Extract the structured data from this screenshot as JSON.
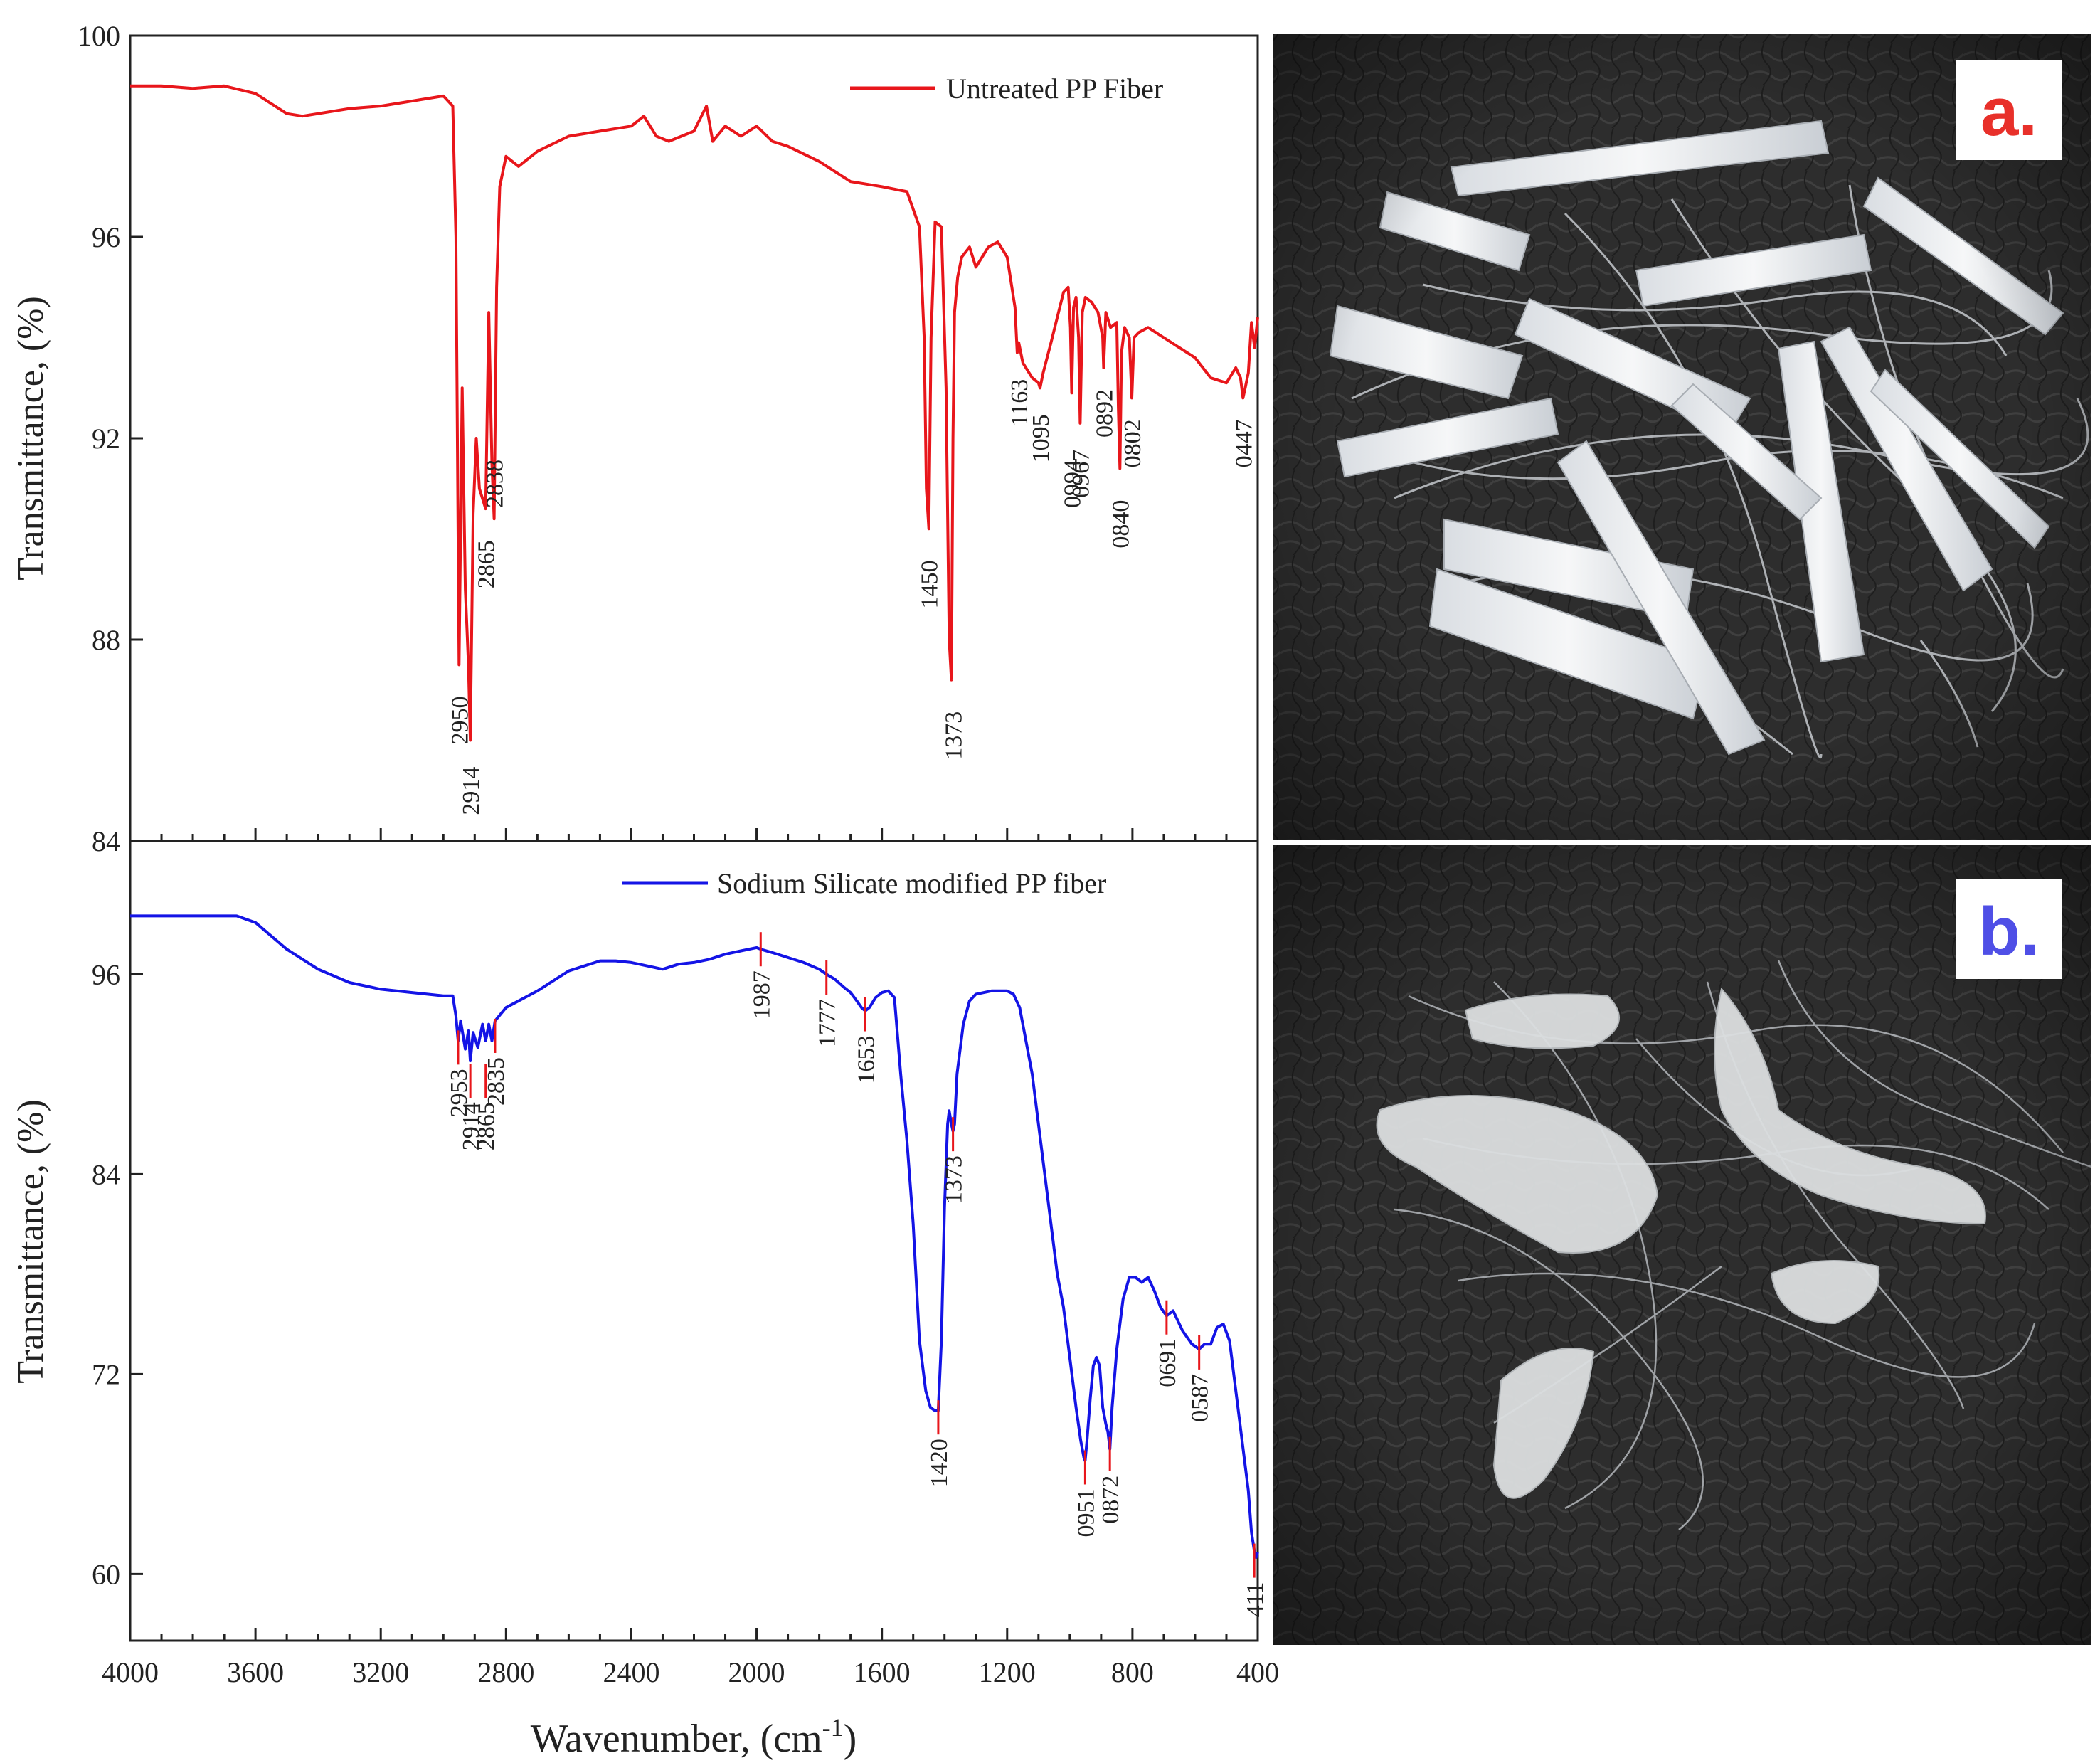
{
  "chart_data": [
    {
      "type": "line",
      "panel": "top",
      "title": "",
      "xlabel": "Wavenumber, (cm",
      "xlabel_sup": "-1",
      "xlabel_close": ")",
      "ylabel": "Transmittance, (%)",
      "xlim": [
        4000,
        400
      ],
      "ylim": [
        84,
        100
      ],
      "x_reversed": true,
      "y_ticks": [
        "100",
        "96",
        "92",
        "88",
        "84"
      ],
      "y_tick_values": [
        100,
        96,
        92,
        88,
        84
      ],
      "x_ticks_minor_step": 100,
      "legend_position": "top-right",
      "series": [
        {
          "name": "Untreated PP Fiber",
          "color": "#e8161b",
          "x": [
            4000,
            3900,
            3800,
            3700,
            3600,
            3500,
            3450,
            3400,
            3300,
            3200,
            3100,
            3000,
            2970,
            2960,
            2950,
            2940,
            2930,
            2920,
            2914,
            2905,
            2895,
            2885,
            2875,
            2865,
            2855,
            2845,
            2838,
            2830,
            2820,
            2800,
            2760,
            2700,
            2600,
            2500,
            2400,
            2360,
            2320,
            2280,
            2200,
            2160,
            2140,
            2100,
            2050,
            2000,
            1950,
            1900,
            1800,
            1700,
            1600,
            1520,
            1480,
            1465,
            1458,
            1450,
            1443,
            1430,
            1410,
            1395,
            1385,
            1378,
            1373,
            1368,
            1358,
            1345,
            1320,
            1300,
            1260,
            1230,
            1200,
            1175,
            1168,
            1163,
            1150,
            1120,
            1100,
            1095,
            1085,
            1060,
            1040,
            1020,
            1005,
            998,
            994,
            988,
            980,
            972,
            967,
            960,
            950,
            930,
            910,
            895,
            892,
            885,
            870,
            850,
            845,
            840,
            835,
            825,
            810,
            802,
            795,
            780,
            750,
            700,
            650,
            600,
            550,
            500,
            470,
            455,
            447,
            440,
            430,
            420,
            410,
            400
          ],
          "y": [
            99.0,
            99.0,
            98.95,
            99.0,
            98.85,
            98.45,
            98.4,
            98.45,
            98.55,
            98.6,
            98.7,
            98.8,
            98.6,
            96.0,
            87.5,
            93.0,
            89.0,
            87.5,
            86.0,
            90.5,
            92.0,
            91.0,
            90.8,
            90.6,
            94.5,
            91.5,
            90.4,
            95.0,
            97.0,
            97.6,
            97.4,
            97.7,
            98.0,
            98.1,
            98.2,
            98.4,
            98.0,
            97.9,
            98.1,
            98.6,
            97.9,
            98.2,
            98.0,
            98.2,
            97.9,
            97.8,
            97.5,
            97.1,
            97.0,
            96.9,
            96.2,
            94.0,
            91.0,
            90.2,
            94.0,
            96.3,
            96.2,
            93.0,
            88.0,
            87.2,
            92.0,
            94.5,
            95.2,
            95.6,
            95.8,
            95.4,
            95.8,
            95.9,
            95.6,
            94.6,
            93.7,
            93.9,
            93.5,
            93.2,
            93.1,
            93.0,
            93.3,
            93.9,
            94.4,
            94.9,
            95.0,
            94.2,
            92.9,
            94.6,
            94.8,
            94.0,
            92.3,
            94.5,
            94.8,
            94.7,
            94.5,
            94.0,
            93.4,
            94.5,
            94.2,
            94.3,
            92.6,
            91.4,
            93.7,
            94.2,
            94.0,
            92.8,
            94.0,
            94.1,
            94.2,
            94.0,
            93.8,
            93.6,
            93.2,
            93.1,
            93.4,
            93.2,
            92.8,
            93.0,
            93.3,
            94.3,
            93.8,
            94.4
          ]
        }
      ],
      "peak_labels": [
        {
          "text": "2950",
          "x": 2950,
          "y": 87.3
        },
        {
          "text": "2914",
          "x": 2914,
          "y": 85.9
        },
        {
          "text": "2865",
          "x": 2865,
          "y": 90.4
        },
        {
          "text": "2838",
          "x": 2838,
          "y": 92.0
        },
        {
          "text": "1450",
          "x": 1450,
          "y": 90.0
        },
        {
          "text": "1373",
          "x": 1373,
          "y": 87.0
        },
        {
          "text": "1163",
          "x": 1163,
          "y": 93.6
        },
        {
          "text": "1095",
          "x": 1095,
          "y": 92.9
        },
        {
          "text": "0994",
          "x": 994,
          "y": 92.0
        },
        {
          "text": "0967",
          "x": 967,
          "y": 92.2
        },
        {
          "text": "0892",
          "x": 892,
          "y": 93.4
        },
        {
          "text": "0840",
          "x": 840,
          "y": 91.2
        },
        {
          "text": "0802",
          "x": 802,
          "y": 92.8
        },
        {
          "text": "0447",
          "x": 447,
          "y": 92.8
        }
      ]
    },
    {
      "type": "line",
      "panel": "bottom",
      "title": "",
      "xlabel": "Wavenumber, (cm",
      "xlabel_sup": "-1",
      "xlabel_close": ")",
      "ylabel": "Transmittance, (%)",
      "xlim": [
        4000,
        400
      ],
      "ylim": [
        56,
        104
      ],
      "x_reversed": true,
      "y_ticks": [
        "96",
        "84",
        "72",
        "60"
      ],
      "y_tick_values": [
        96,
        84,
        72,
        60
      ],
      "x_ticks": [
        "4000",
        "3600",
        "3200",
        "2800",
        "2400",
        "2000",
        "1600",
        "1200",
        "800",
        "400"
      ],
      "x_tick_values": [
        4000,
        3600,
        3200,
        2800,
        2400,
        2000,
        1600,
        1200,
        800,
        400
      ],
      "x_ticks_minor_step": 100,
      "legend_position": "top-right",
      "series": [
        {
          "name": "Sodium Silicate modified PP fiber",
          "color": "#1414e6",
          "x": [
            4000,
            3900,
            3800,
            3700,
            3660,
            3600,
            3500,
            3400,
            3300,
            3200,
            3100,
            3000,
            2970,
            2960,
            2953,
            2945,
            2930,
            2920,
            2914,
            2905,
            2890,
            2875,
            2865,
            2855,
            2845,
            2835,
            2800,
            2700,
            2600,
            2500,
            2450,
            2400,
            2350,
            2300,
            2250,
            2200,
            2150,
            2100,
            2050,
            2000,
            1987,
            1950,
            1900,
            1850,
            1800,
            1777,
            1750,
            1720,
            1700,
            1680,
            1665,
            1653,
            1640,
            1620,
            1600,
            1580,
            1560,
            1540,
            1520,
            1500,
            1480,
            1460,
            1445,
            1430,
            1420,
            1410,
            1400,
            1390,
            1385,
            1378,
            1373,
            1368,
            1360,
            1340,
            1320,
            1300,
            1250,
            1200,
            1180,
            1160,
            1140,
            1120,
            1100,
            1080,
            1060,
            1040,
            1020,
            1000,
            980,
            965,
            955,
            951,
            945,
            935,
            925,
            915,
            905,
            895,
            885,
            878,
            872,
            865,
            850,
            830,
            810,
            790,
            770,
            750,
            730,
            710,
            691,
            670,
            640,
            610,
            587,
            570,
            550,
            530,
            510,
            490,
            470,
            450,
            430,
            420,
            411,
            405,
            400
          ],
          "y": [
            99.5,
            99.5,
            99.5,
            99.5,
            99.5,
            99.1,
            97.5,
            96.3,
            95.5,
            95.1,
            94.9,
            94.7,
            94.7,
            93.5,
            92.0,
            93.2,
            91.5,
            92.6,
            90.8,
            92.5,
            91.6,
            93.0,
            92.0,
            93.0,
            92.0,
            93.2,
            94.0,
            95.0,
            96.2,
            96.8,
            96.8,
            96.7,
            96.5,
            96.3,
            96.6,
            96.7,
            96.9,
            97.2,
            97.4,
            97.6,
            97.5,
            97.3,
            97.0,
            96.7,
            96.3,
            96.0,
            95.7,
            95.2,
            94.9,
            94.4,
            94.0,
            93.8,
            94.0,
            94.6,
            94.9,
            95.0,
            94.6,
            90.0,
            86.0,
            81.0,
            74.0,
            71.0,
            70.0,
            69.8,
            69.8,
            74.0,
            82.0,
            87.0,
            87.8,
            87.0,
            86.6,
            87.0,
            90.0,
            93.0,
            94.4,
            94.8,
            95.0,
            95.0,
            94.8,
            94.0,
            92.0,
            90.0,
            87.0,
            84.0,
            81.0,
            78.0,
            76.0,
            73.0,
            70.0,
            68.0,
            67.0,
            66.8,
            68.0,
            70.5,
            72.5,
            73.0,
            72.5,
            70.0,
            69.0,
            68.5,
            67.5,
            70.0,
            73.5,
            76.5,
            77.8,
            77.8,
            77.5,
            77.8,
            77.0,
            76.0,
            75.5,
            75.8,
            74.6,
            73.8,
            73.5,
            73.8,
            73.8,
            74.8,
            75.0,
            74.0,
            71.0,
            68.0,
            65.0,
            62.5,
            61.4,
            61.0,
            61.3
          ]
        }
      ],
      "peak_labels": [
        {
          "text": "2953",
          "x": 2953,
          "y": 91.6
        },
        {
          "text": "2914",
          "x": 2914,
          "y": 89.6
        },
        {
          "text": "2865",
          "x": 2865,
          "y": 89.6
        },
        {
          "text": "2835",
          "x": 2835,
          "y": 92.3
        },
        {
          "text": "1987",
          "x": 1987,
          "y": 97.5
        },
        {
          "text": "1777",
          "x": 1777,
          "y": 95.8
        },
        {
          "text": "1653",
          "x": 1653,
          "y": 93.6
        },
        {
          "text": "1373",
          "x": 1373,
          "y": 86.4
        },
        {
          "text": "1420",
          "x": 1420,
          "y": 69.4
        },
        {
          "text": "0951",
          "x": 951,
          "y": 66.4
        },
        {
          "text": "0872",
          "x": 872,
          "y": 67.2
        },
        {
          "text": "0691",
          "x": 691,
          "y": 75.4
        },
        {
          "text": "0587",
          "x": 587,
          "y": 73.3
        },
        {
          "text": "411",
          "x": 411,
          "y": 60.8
        }
      ]
    }
  ],
  "photos": [
    {
      "label": "a.",
      "label_color": "#e8302a",
      "subject": "untreated-pp-fibers"
    },
    {
      "label": "b.",
      "label_color": "#4f4fe6",
      "subject": "sodium-silicate-modified-pp-fibers"
    }
  ],
  "colors": {
    "axis": "#222222",
    "leather_dark": "#262626",
    "leather_mid": "#3a3a3a",
    "fiber_white": "#eef0f2"
  }
}
